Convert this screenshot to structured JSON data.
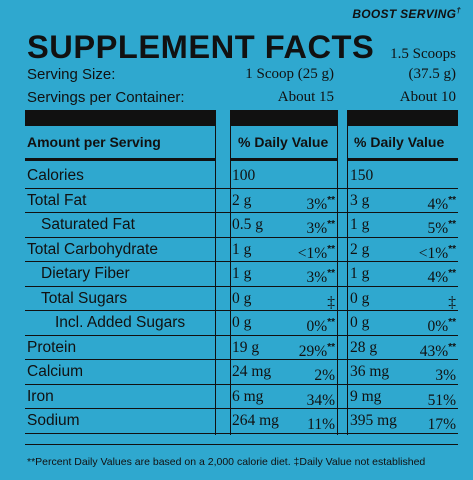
{
  "boost_label": "BOOST SERVING",
  "boost_mark": "†",
  "title": "SUPPLEMENT FACTS",
  "serving_size_label": "Serving Size:",
  "servings_per_container_label": "Servings per Container:",
  "col1": {
    "serving_size": "1 Scoop (25 g)",
    "servings": "About 15"
  },
  "col2": {
    "serving_size_line1": "1.5 Scoops",
    "serving_size_line2": "(37.5 g)",
    "servings": "About 10"
  },
  "headers": {
    "amount": "Amount per Serving",
    "daily1": "% Daily Value",
    "daily2": "% Daily Value"
  },
  "rows": [
    {
      "label": "Calories",
      "a1": "100",
      "p1": "",
      "s1": "",
      "a2": "150",
      "p2": "",
      "s2": ""
    },
    {
      "label": "Total Fat",
      "a1": "2 g",
      "p1": "3%",
      "s1": "**",
      "a2": "3 g",
      "p2": "4%",
      "s2": "**"
    },
    {
      "label": "Saturated Fat",
      "a1": "0.5 g",
      "p1": "3%",
      "s1": "**",
      "a2": "1 g",
      "p2": "5%",
      "s2": "**"
    },
    {
      "label": "Total Carbohydrate",
      "a1": "1 g",
      "p1": "<1%",
      "s1": "**",
      "a2": "2 g",
      "p2": "<1%",
      "s2": "**"
    },
    {
      "label": "Dietary Fiber",
      "a1": "1 g",
      "p1": "3%",
      "s1": "**",
      "a2": "1 g",
      "p2": "4%",
      "s2": "**"
    },
    {
      "label": "Total Sugars",
      "a1": "0 g",
      "p1": "‡",
      "s1": "",
      "a2": "0 g",
      "p2": "‡",
      "s2": ""
    },
    {
      "label": "Incl. Added Sugars",
      "a1": "0 g",
      "p1": "0%",
      "s1": "**",
      "a2": "0 g",
      "p2": "0%",
      "s2": "**"
    },
    {
      "label": "Protein",
      "a1": "19 g",
      "p1": "29%",
      "s1": "**",
      "a2": "28 g",
      "p2": "43%",
      "s2": "**"
    },
    {
      "label": "Calcium",
      "a1": "24 mg",
      "p1": "2%",
      "s1": "",
      "a2": "36 mg",
      "p2": "3%",
      "s2": ""
    },
    {
      "label": "Iron",
      "a1": "6 mg",
      "p1": "34%",
      "s1": "",
      "a2": "9 mg",
      "p2": "51%",
      "s2": ""
    },
    {
      "label": "Sodium",
      "a1": "264 mg",
      "p1": "11%",
      "s1": "",
      "a2": "395 mg",
      "p2": "17%",
      "s2": ""
    }
  ],
  "footnote": "**Percent Daily Values are based on a 2,000 calorie diet.  ‡Daily Value not established",
  "colors": {
    "background": "#2fa8cf",
    "ink": "#111111"
  }
}
